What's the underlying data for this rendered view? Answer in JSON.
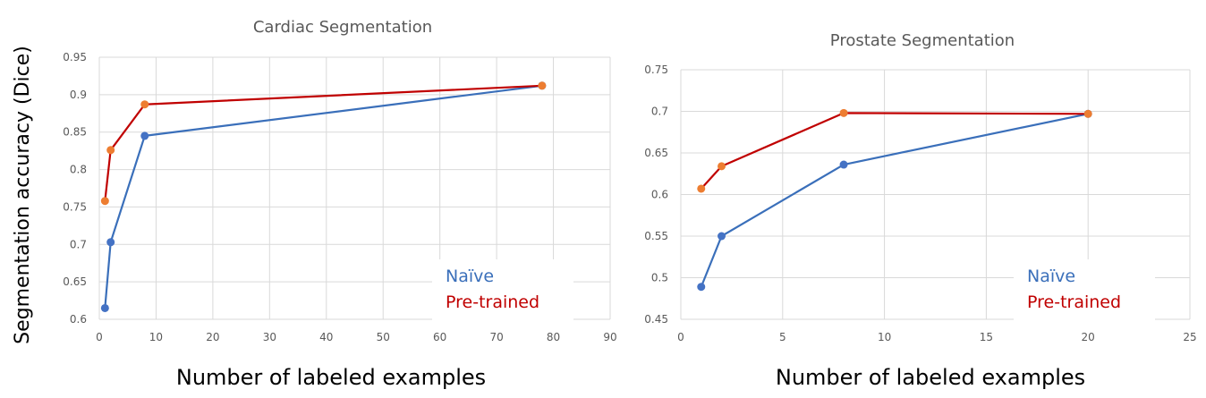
{
  "shared": {
    "ylabel": "Segmentation accuracy (Dice)"
  },
  "colors": {
    "naive": "#3a6fba",
    "pretrained_line": "#c00000",
    "pretrained_marker": "#ed7d31",
    "naive_marker": "#4472c4",
    "grid": "#d9d9d9"
  },
  "chart_data": [
    {
      "type": "line",
      "title": "Cardiac Segmentation",
      "xlabel": "Number of labeled examples",
      "ylabel": "Segmentation accuracy (Dice)",
      "xlim": [
        0,
        90
      ],
      "ylim": [
        0.6,
        0.95
      ],
      "xticks": [
        "0",
        "10",
        "20",
        "30",
        "40",
        "50",
        "60",
        "70",
        "80",
        "90"
      ],
      "yticks": [
        "0.6",
        "0.65",
        "0.7",
        "0.75",
        "0.8",
        "0.85",
        "0.9",
        "0.95"
      ],
      "grid": true,
      "legend_position": "bottom-right",
      "series": [
        {
          "name": "Naïve",
          "x": [
            1,
            2,
            8,
            78
          ],
          "y": [
            0.615,
            0.703,
            0.845,
            0.912
          ]
        },
        {
          "name": "Pre-trained",
          "x": [
            1,
            2,
            8,
            78
          ],
          "y": [
            0.758,
            0.826,
            0.887,
            0.912
          ]
        }
      ]
    },
    {
      "type": "line",
      "title": "Prostate Segmentation",
      "xlabel": "Number of labeled examples",
      "ylabel": "",
      "xlim": [
        0,
        25
      ],
      "ylim": [
        0.45,
        0.75
      ],
      "xticks": [
        "0",
        "5",
        "10",
        "15",
        "20",
        "25"
      ],
      "yticks": [
        "0.45",
        "0.5",
        "0.55",
        "0.6",
        "0.65",
        "0.7",
        "0.75"
      ],
      "grid": true,
      "legend_position": "bottom-right",
      "series": [
        {
          "name": "Naïve",
          "x": [
            1,
            2,
            8,
            20
          ],
          "y": [
            0.489,
            0.55,
            0.636,
            0.697
          ]
        },
        {
          "name": "Pre-trained",
          "x": [
            1,
            2,
            8,
            20
          ],
          "y": [
            0.607,
            0.634,
            0.698,
            0.697
          ]
        }
      ]
    }
  ]
}
